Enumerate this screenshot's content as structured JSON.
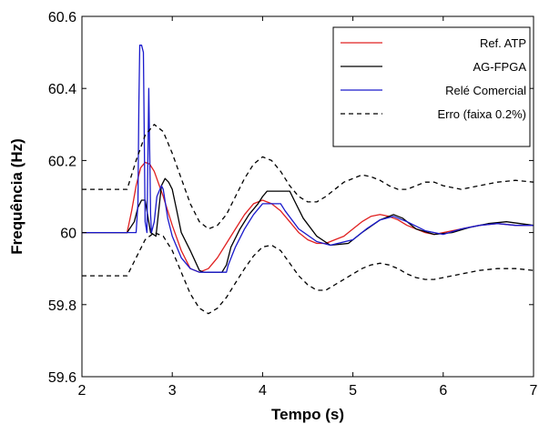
{
  "chart_data": {
    "type": "line",
    "title": "",
    "xlabel": "Tempo (s)",
    "ylabel": "Frequência (Hz)",
    "xlim": [
      2,
      7
    ],
    "ylim": [
      59.6,
      60.6
    ],
    "xticks": [
      "2",
      "3",
      "4",
      "5",
      "6",
      "7"
    ],
    "yticks": [
      "59.6",
      "59.8",
      "60",
      "60.2",
      "60.4",
      "60.6"
    ],
    "grid": false,
    "legend_position": "top-right",
    "series": [
      {
        "name": "Ref. ATP",
        "color": "#e02020",
        "style": "solid",
        "x": [
          2.0,
          2.5,
          2.55,
          2.6,
          2.65,
          2.7,
          2.75,
          2.8,
          2.9,
          3.0,
          3.1,
          3.2,
          3.3,
          3.4,
          3.5,
          3.6,
          3.7,
          3.8,
          3.9,
          4.0,
          4.1,
          4.2,
          4.3,
          4.4,
          4.5,
          4.6,
          4.7,
          4.8,
          4.9,
          5.0,
          5.1,
          5.2,
          5.3,
          5.4,
          5.5,
          5.6,
          5.7,
          5.8,
          5.9,
          6.0,
          6.2,
          6.4,
          6.6,
          6.8,
          7.0
        ],
        "y": [
          60.0,
          60.0,
          60.06,
          60.13,
          60.18,
          60.195,
          60.19,
          60.17,
          60.1,
          60.02,
          59.95,
          59.9,
          59.89,
          59.9,
          59.93,
          59.97,
          60.01,
          60.05,
          60.08,
          60.09,
          60.08,
          60.06,
          60.03,
          60.0,
          59.98,
          59.97,
          59.97,
          59.98,
          59.99,
          60.01,
          60.03,
          60.045,
          60.05,
          60.045,
          60.035,
          60.02,
          60.01,
          60.0,
          59.995,
          60.0,
          60.01,
          60.02,
          60.025,
          60.02,
          60.02
        ]
      },
      {
        "name": "AG-FPGA",
        "color": "#000000",
        "style": "solid",
        "x": [
          2.0,
          2.5,
          2.58,
          2.62,
          2.66,
          2.7,
          2.76,
          2.82,
          2.88,
          2.92,
          2.96,
          3.0,
          3.05,
          3.1,
          3.2,
          3.3,
          3.35,
          3.55,
          3.6,
          3.65,
          3.75,
          3.85,
          3.95,
          4.0,
          4.05,
          4.1,
          4.3,
          4.35,
          4.45,
          4.6,
          4.75,
          4.95,
          5.1,
          5.3,
          5.45,
          5.55,
          5.7,
          5.9,
          6.1,
          6.3,
          6.5,
          6.7,
          6.85,
          7.0
        ],
        "y": [
          60.0,
          60.0,
          60.03,
          60.07,
          60.09,
          60.09,
          60.0,
          59.99,
          60.13,
          60.15,
          60.14,
          60.12,
          60.06,
          60.0,
          59.95,
          59.895,
          59.89,
          59.89,
          59.91,
          59.96,
          60.01,
          60.05,
          60.08,
          60.1,
          60.115,
          60.115,
          60.115,
          60.09,
          60.04,
          59.99,
          59.965,
          59.97,
          60.0,
          60.035,
          60.05,
          60.04,
          60.01,
          59.995,
          60.0,
          60.015,
          60.025,
          60.03,
          60.025,
          60.02
        ]
      },
      {
        "name": "Relé Comercial",
        "color": "#1a1acc",
        "style": "solid",
        "x": [
          2.0,
          2.5,
          2.6,
          2.62,
          2.63,
          2.64,
          2.66,
          2.68,
          2.7,
          2.72,
          2.74,
          2.76,
          2.77,
          2.8,
          2.83,
          2.88,
          2.9,
          2.95,
          3.0,
          3.1,
          3.2,
          3.3,
          3.6,
          3.62,
          3.7,
          3.8,
          3.9,
          4.0,
          4.2,
          4.25,
          4.4,
          4.6,
          4.75,
          5.0,
          5.15,
          5.3,
          5.45,
          5.6,
          5.8,
          6.0,
          6.2,
          6.4,
          6.6,
          6.8,
          7.0
        ],
        "y": [
          60.0,
          60.0,
          60.0,
          60.08,
          60.35,
          60.52,
          60.52,
          60.5,
          60.03,
          60.0,
          60.4,
          60.05,
          60.0,
          60.03,
          60.1,
          60.13,
          60.12,
          60.04,
          59.99,
          59.93,
          59.9,
          59.89,
          59.89,
          59.91,
          59.96,
          60.01,
          60.05,
          60.08,
          60.08,
          60.06,
          60.01,
          59.975,
          59.965,
          59.98,
          60.01,
          60.035,
          60.045,
          60.03,
          60.005,
          59.995,
          60.01,
          60.02,
          60.025,
          60.02,
          60.02
        ]
      },
      {
        "name": "Erro (faixa 0.2%)",
        "color": "#000000",
        "style": "dashed",
        "x": [
          2.0,
          2.5,
          2.6,
          2.7,
          2.8,
          2.9,
          3.0,
          3.1,
          3.2,
          3.3,
          3.4,
          3.5,
          3.6,
          3.7,
          3.8,
          3.9,
          4.0,
          4.1,
          4.2,
          4.3,
          4.4,
          4.5,
          4.6,
          4.7,
          4.8,
          4.9,
          5.0,
          5.1,
          5.2,
          5.3,
          5.4,
          5.5,
          5.6,
          5.7,
          5.8,
          5.9,
          6.0,
          6.2,
          6.4,
          6.6,
          6.8,
          7.0
        ],
        "y": [
          60.12,
          60.12,
          60.2,
          60.27,
          60.3,
          60.28,
          60.22,
          60.15,
          60.08,
          60.03,
          60.01,
          60.02,
          60.05,
          60.1,
          60.15,
          60.19,
          60.21,
          60.2,
          60.17,
          60.13,
          60.1,
          60.085,
          60.085,
          60.1,
          60.12,
          60.14,
          60.15,
          60.16,
          60.155,
          60.145,
          60.13,
          60.12,
          60.12,
          60.13,
          60.14,
          60.14,
          60.13,
          60.12,
          60.13,
          60.14,
          60.145,
          60.14
        ]
      },
      {
        "name": "",
        "color": "#000000",
        "style": "dashed",
        "x": [
          2.0,
          2.5,
          2.6,
          2.7,
          2.8,
          2.9,
          3.0,
          3.1,
          3.2,
          3.3,
          3.4,
          3.5,
          3.6,
          3.7,
          3.8,
          3.9,
          4.0,
          4.1,
          4.2,
          4.3,
          4.4,
          4.5,
          4.6,
          4.7,
          4.8,
          4.9,
          5.0,
          5.1,
          5.2,
          5.3,
          5.4,
          5.5,
          5.6,
          5.7,
          5.8,
          5.9,
          6.0,
          6.2,
          6.4,
          6.6,
          6.8,
          7.0
        ],
        "y": [
          59.88,
          59.88,
          59.93,
          59.98,
          60.0,
          59.99,
          59.95,
          59.89,
          59.83,
          59.79,
          59.775,
          59.79,
          59.82,
          59.86,
          59.9,
          59.935,
          59.96,
          59.965,
          59.95,
          59.915,
          59.88,
          59.855,
          59.84,
          59.84,
          59.855,
          59.87,
          59.885,
          59.9,
          59.91,
          59.915,
          59.91,
          59.9,
          59.885,
          59.875,
          59.87,
          59.87,
          59.875,
          59.885,
          59.895,
          59.9,
          59.9,
          59.895
        ]
      }
    ]
  }
}
